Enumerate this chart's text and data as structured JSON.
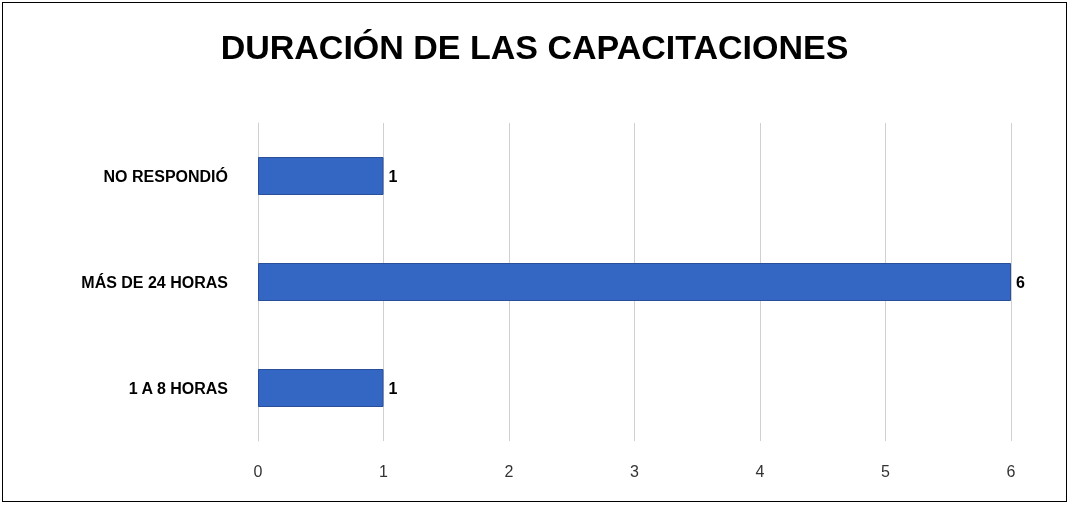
{
  "chart_data": {
    "type": "bar",
    "orientation": "horizontal",
    "title": "DURACIÓN DE LAS CAPACITACIONES",
    "categories": [
      "NO RESPONDIÓ",
      "MÁS DE 24 HORAS",
      "1 A 8 HORAS"
    ],
    "values": [
      1,
      6,
      1
    ],
    "color": "#3466c4",
    "xlim": [
      0,
      6
    ],
    "xticks": [
      0,
      1,
      2,
      3,
      4,
      5,
      6
    ],
    "grid": "x",
    "data_labels": true
  }
}
